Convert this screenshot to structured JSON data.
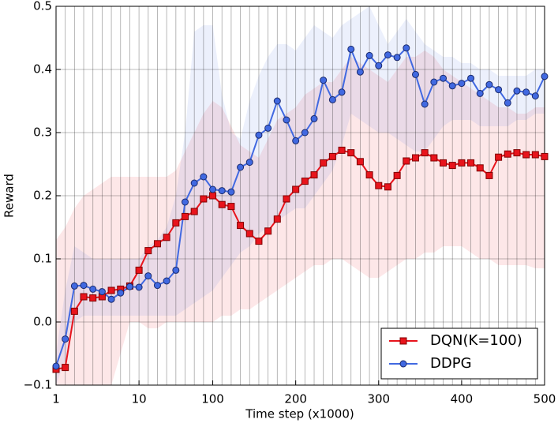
{
  "chart_data": {
    "type": "line",
    "x_label": "Time step (x1000)",
    "y_label": "Reward",
    "categories": [
      "1",
      null,
      null,
      null,
      null,
      null,
      null,
      null,
      null,
      "10",
      null,
      null,
      null,
      null,
      null,
      null,
      null,
      "100",
      null,
      null,
      null,
      null,
      null,
      null,
      null,
      null,
      "200",
      null,
      null,
      null,
      null,
      null,
      null,
      null,
      null,
      "300",
      null,
      null,
      null,
      null,
      null,
      null,
      null,
      null,
      "400",
      null,
      null,
      null,
      null,
      null,
      null,
      null,
      null,
      "500"
    ],
    "ylim": [
      -0.1,
      0.5
    ],
    "yticks": [
      {
        "value": -0.1,
        "label": "−0.1"
      },
      {
        "value": 0,
        "label": "0.0"
      },
      0.1,
      0.2,
      0.3,
      0.4,
      0.5
    ],
    "grid": true,
    "legend": "lower right",
    "series": [
      {
        "name": "DQN(K=100)",
        "color": "#e8141c",
        "marker": "square",
        "values": [
          -0.075,
          -0.072,
          0.017,
          0.04,
          0.038,
          0.04,
          0.05,
          0.052,
          0.057,
          0.082,
          0.113,
          0.124,
          0.134,
          0.157,
          0.167,
          0.175,
          0.195,
          0.2,
          0.186,
          0.183,
          0.153,
          0.14,
          0.128,
          0.144,
          0.163,
          0.195,
          0.21,
          0.223,
          0.233,
          0.252,
          0.262,
          0.272,
          0.268,
          0.254,
          0.233,
          0.216,
          0.214,
          0.232,
          0.255,
          0.26,
          0.268,
          0.26,
          0.252,
          0.248,
          0.252,
          0.252,
          0.244,
          0.232,
          0.261,
          0.266,
          0.268,
          0.265,
          0.265,
          0.262
        ],
        "upper": [
          0.13,
          0.15,
          0.18,
          0.2,
          0.21,
          0.22,
          0.23,
          0.23,
          0.23,
          0.23,
          0.23,
          0.23,
          0.23,
          0.24,
          0.27,
          0.3,
          0.33,
          0.35,
          0.34,
          0.31,
          0.28,
          0.27,
          0.26,
          0.29,
          0.32,
          0.33,
          0.34,
          0.36,
          0.37,
          0.38,
          0.38,
          0.4,
          0.42,
          0.41,
          0.4,
          0.39,
          0.38,
          0.4,
          0.42,
          0.42,
          0.43,
          0.42,
          0.4,
          0.39,
          0.38,
          0.37,
          0.36,
          0.35,
          0.34,
          0.34,
          0.33,
          0.33,
          0.34,
          0.34
        ],
        "lower": [
          -0.1,
          -0.1,
          -0.1,
          -0.1,
          -0.1,
          -0.1,
          -0.1,
          -0.05,
          0,
          0,
          -0.01,
          -0.01,
          0,
          0,
          0,
          0,
          0,
          0,
          0.01,
          0.01,
          0.02,
          0.02,
          0.03,
          0.04,
          0.05,
          0.06,
          0.07,
          0.08,
          0.09,
          0.09,
          0.1,
          0.1,
          0.09,
          0.08,
          0.07,
          0.07,
          0.08,
          0.09,
          0.1,
          0.1,
          0.11,
          0.11,
          0.12,
          0.12,
          0.12,
          0.11,
          0.1,
          0.1,
          0.09,
          0.09,
          0.09,
          0.09,
          0.085,
          0.085
        ]
      },
      {
        "name": "DDPG",
        "color": "#4169e1",
        "marker": "circle",
        "values": [
          -0.07,
          -0.027,
          0.057,
          0.058,
          0.052,
          0.048,
          0.036,
          0.046,
          0.056,
          0.055,
          0.073,
          0.058,
          0.065,
          0.082,
          0.19,
          0.22,
          0.23,
          0.21,
          0.208,
          0.206,
          0.245,
          0.253,
          0.296,
          0.307,
          0.35,
          0.32,
          0.287,
          0.3,
          0.322,
          0.383,
          0.352,
          0.364,
          0.432,
          0.396,
          0.422,
          0.406,
          0.423,
          0.419,
          0.434,
          0.392,
          0.345,
          0.38,
          0.386,
          0.374,
          0.378,
          0.386,
          0.362,
          0.376,
          0.368,
          0.347,
          0.366,
          0.364,
          0.358,
          0.389
        ],
        "upper": [
          -0.05,
          0.05,
          0.12,
          0.11,
          0.1,
          0.1,
          0.1,
          0.1,
          0.1,
          0.1,
          0.12,
          0.13,
          0.15,
          0.2,
          0.3,
          0.46,
          0.47,
          0.47,
          0.36,
          0.3,
          0.29,
          0.35,
          0.39,
          0.42,
          0.44,
          0.44,
          0.43,
          0.45,
          0.47,
          0.46,
          0.45,
          0.47,
          0.48,
          0.49,
          0.5,
          0.47,
          0.44,
          0.46,
          0.48,
          0.46,
          0.44,
          0.43,
          0.42,
          0.42,
          0.41,
          0.41,
          0.4,
          0.4,
          0.39,
          0.39,
          0.39,
          0.39,
          0.4,
          0.4
        ],
        "lower": [
          -0.1,
          -0.06,
          0,
          0.01,
          0.01,
          0.01,
          0.01,
          0.01,
          0.01,
          0.01,
          0.01,
          0.01,
          0.01,
          0.01,
          0.02,
          0.03,
          0.04,
          0.05,
          0.07,
          0.09,
          0.11,
          0.12,
          0.14,
          0.15,
          0.16,
          0.17,
          0.18,
          0.18,
          0.2,
          0.22,
          0.24,
          0.28,
          0.33,
          0.32,
          0.31,
          0.3,
          0.3,
          0.29,
          0.28,
          0.27,
          0.27,
          0.29,
          0.31,
          0.32,
          0.32,
          0.32,
          0.31,
          0.31,
          0.31,
          0.31,
          0.32,
          0.32,
          0.33,
          0.33
        ]
      }
    ]
  }
}
